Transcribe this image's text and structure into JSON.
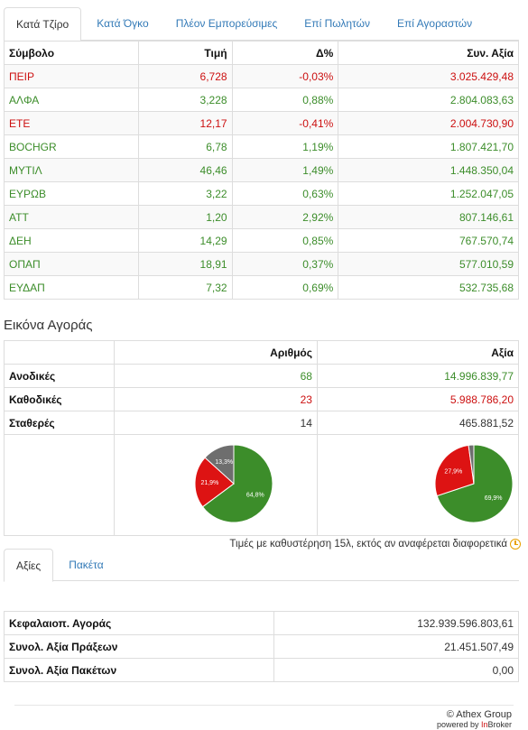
{
  "top_tabs": [
    {
      "label": "Κατά Τζίρο",
      "active": true
    },
    {
      "label": "Κατά Όγκο",
      "active": false
    },
    {
      "label": "Πλέον Εμπορεύσιμες",
      "active": false
    },
    {
      "label": "Επί Πωλητών",
      "active": false
    },
    {
      "label": "Επί Αγοραστών",
      "active": false
    }
  ],
  "stocks_table": {
    "headers": {
      "symbol": "Σύμβολο",
      "price": "Τιμή",
      "change": "Δ%",
      "value": "Συν. Αξία"
    },
    "rows": [
      {
        "symbol": "ΠΕΙΡ",
        "price": "6,728",
        "change": "-0,03%",
        "value": "3.025.429,48",
        "trend": "down"
      },
      {
        "symbol": "ΑΛΦΑ",
        "price": "3,228",
        "change": "0,88%",
        "value": "2.804.083,63",
        "trend": "up"
      },
      {
        "symbol": "ΕΤΕ",
        "price": "12,17",
        "change": "-0,41%",
        "value": "2.004.730,90",
        "trend": "down"
      },
      {
        "symbol": "BOCHGR",
        "price": "6,78",
        "change": "1,19%",
        "value": "1.807.421,70",
        "trend": "up"
      },
      {
        "symbol": "ΜΥΤΙΛ",
        "price": "46,46",
        "change": "1,49%",
        "value": "1.448.350,04",
        "trend": "up"
      },
      {
        "symbol": "ΕΥΡΩΒ",
        "price": "3,22",
        "change": "0,63%",
        "value": "1.252.047,05",
        "trend": "up"
      },
      {
        "symbol": "ΑΤΤ",
        "price": "1,20",
        "change": "2,92%",
        "value": "807.146,61",
        "trend": "up"
      },
      {
        "symbol": "ΔΕΗ",
        "price": "14,29",
        "change": "0,85%",
        "value": "767.570,74",
        "trend": "up"
      },
      {
        "symbol": "ΟΠΑΠ",
        "price": "18,91",
        "change": "0,37%",
        "value": "577.010,59",
        "trend": "up"
      },
      {
        "symbol": "ΕΥΔΑΠ",
        "price": "7,32",
        "change": "0,69%",
        "value": "532.735,68",
        "trend": "up"
      }
    ]
  },
  "market_section": {
    "title": "Εικόνα Αγοράς",
    "headers": {
      "count": "Αριθμός",
      "value": "Αξία"
    },
    "rows": [
      {
        "label": "Ανοδικές",
        "count": "68",
        "value": "14.996.839,77",
        "color": "green"
      },
      {
        "label": "Καθοδικές",
        "count": "23",
        "value": "5.988.786,20",
        "color": "red"
      },
      {
        "label": "Σταθερές",
        "count": "14",
        "value": "465.881,52",
        "color": "neutral"
      }
    ]
  },
  "chart_data": [
    {
      "type": "pie",
      "categories": [
        "Ανοδικές",
        "Καθοδικές",
        "Σταθερές"
      ],
      "values": [
        64.8,
        21.9,
        13.3
      ],
      "labels": [
        "64,8%",
        "21,9%",
        "13,3%"
      ],
      "colors": [
        "#3c8d2a",
        "#dd1313",
        "#6e6e6e"
      ]
    },
    {
      "type": "pie",
      "categories": [
        "Ανοδικές",
        "Καθοδικές",
        "Σταθερές"
      ],
      "values": [
        69.9,
        27.9,
        2.2
      ],
      "labels": [
        "69,9%",
        "27,9%",
        ""
      ],
      "colors": [
        "#3c8d2a",
        "#dd1313",
        "#6e6e6e"
      ]
    }
  ],
  "delay_note": "Τιμές με καθυστέρηση 15λ, εκτός αν αναφέρεται διαφορετικά",
  "bottom_tabs": [
    {
      "label": "Αξίες",
      "active": true
    },
    {
      "label": "Πακέτα",
      "active": false
    }
  ],
  "totals": [
    {
      "label": "Κεφαλαιοπ. Αγοράς",
      "value": "132.939.596.803,61"
    },
    {
      "label": "Συνολ. Αξία Πράξεων",
      "value": "21.451.507,49"
    },
    {
      "label": "Συνολ. Αξία Πακέτων",
      "value": "0,00"
    }
  ],
  "footer": {
    "copyright": "© Athex Group",
    "powered_prefix": "powered by ",
    "powered_brand_in": "In",
    "powered_brand_rest": "Broker"
  }
}
